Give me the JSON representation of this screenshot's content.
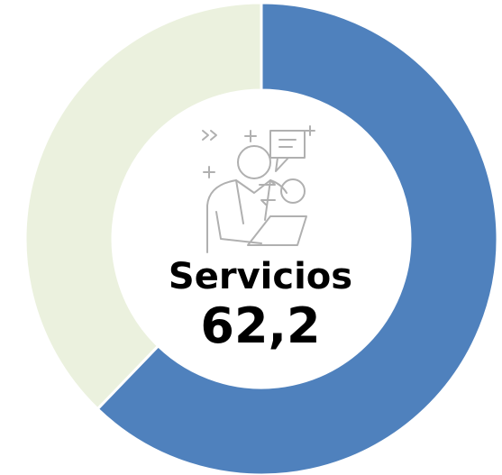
{
  "chart_data": {
    "type": "pie",
    "donut": true,
    "categories": [
      "Servicios",
      null
    ],
    "values": [
      62.2,
      37.8
    ],
    "value_labels": [
      "62,2",
      null
    ],
    "colors": [
      "#4f81bd",
      "#ebf1de"
    ]
  }
}
